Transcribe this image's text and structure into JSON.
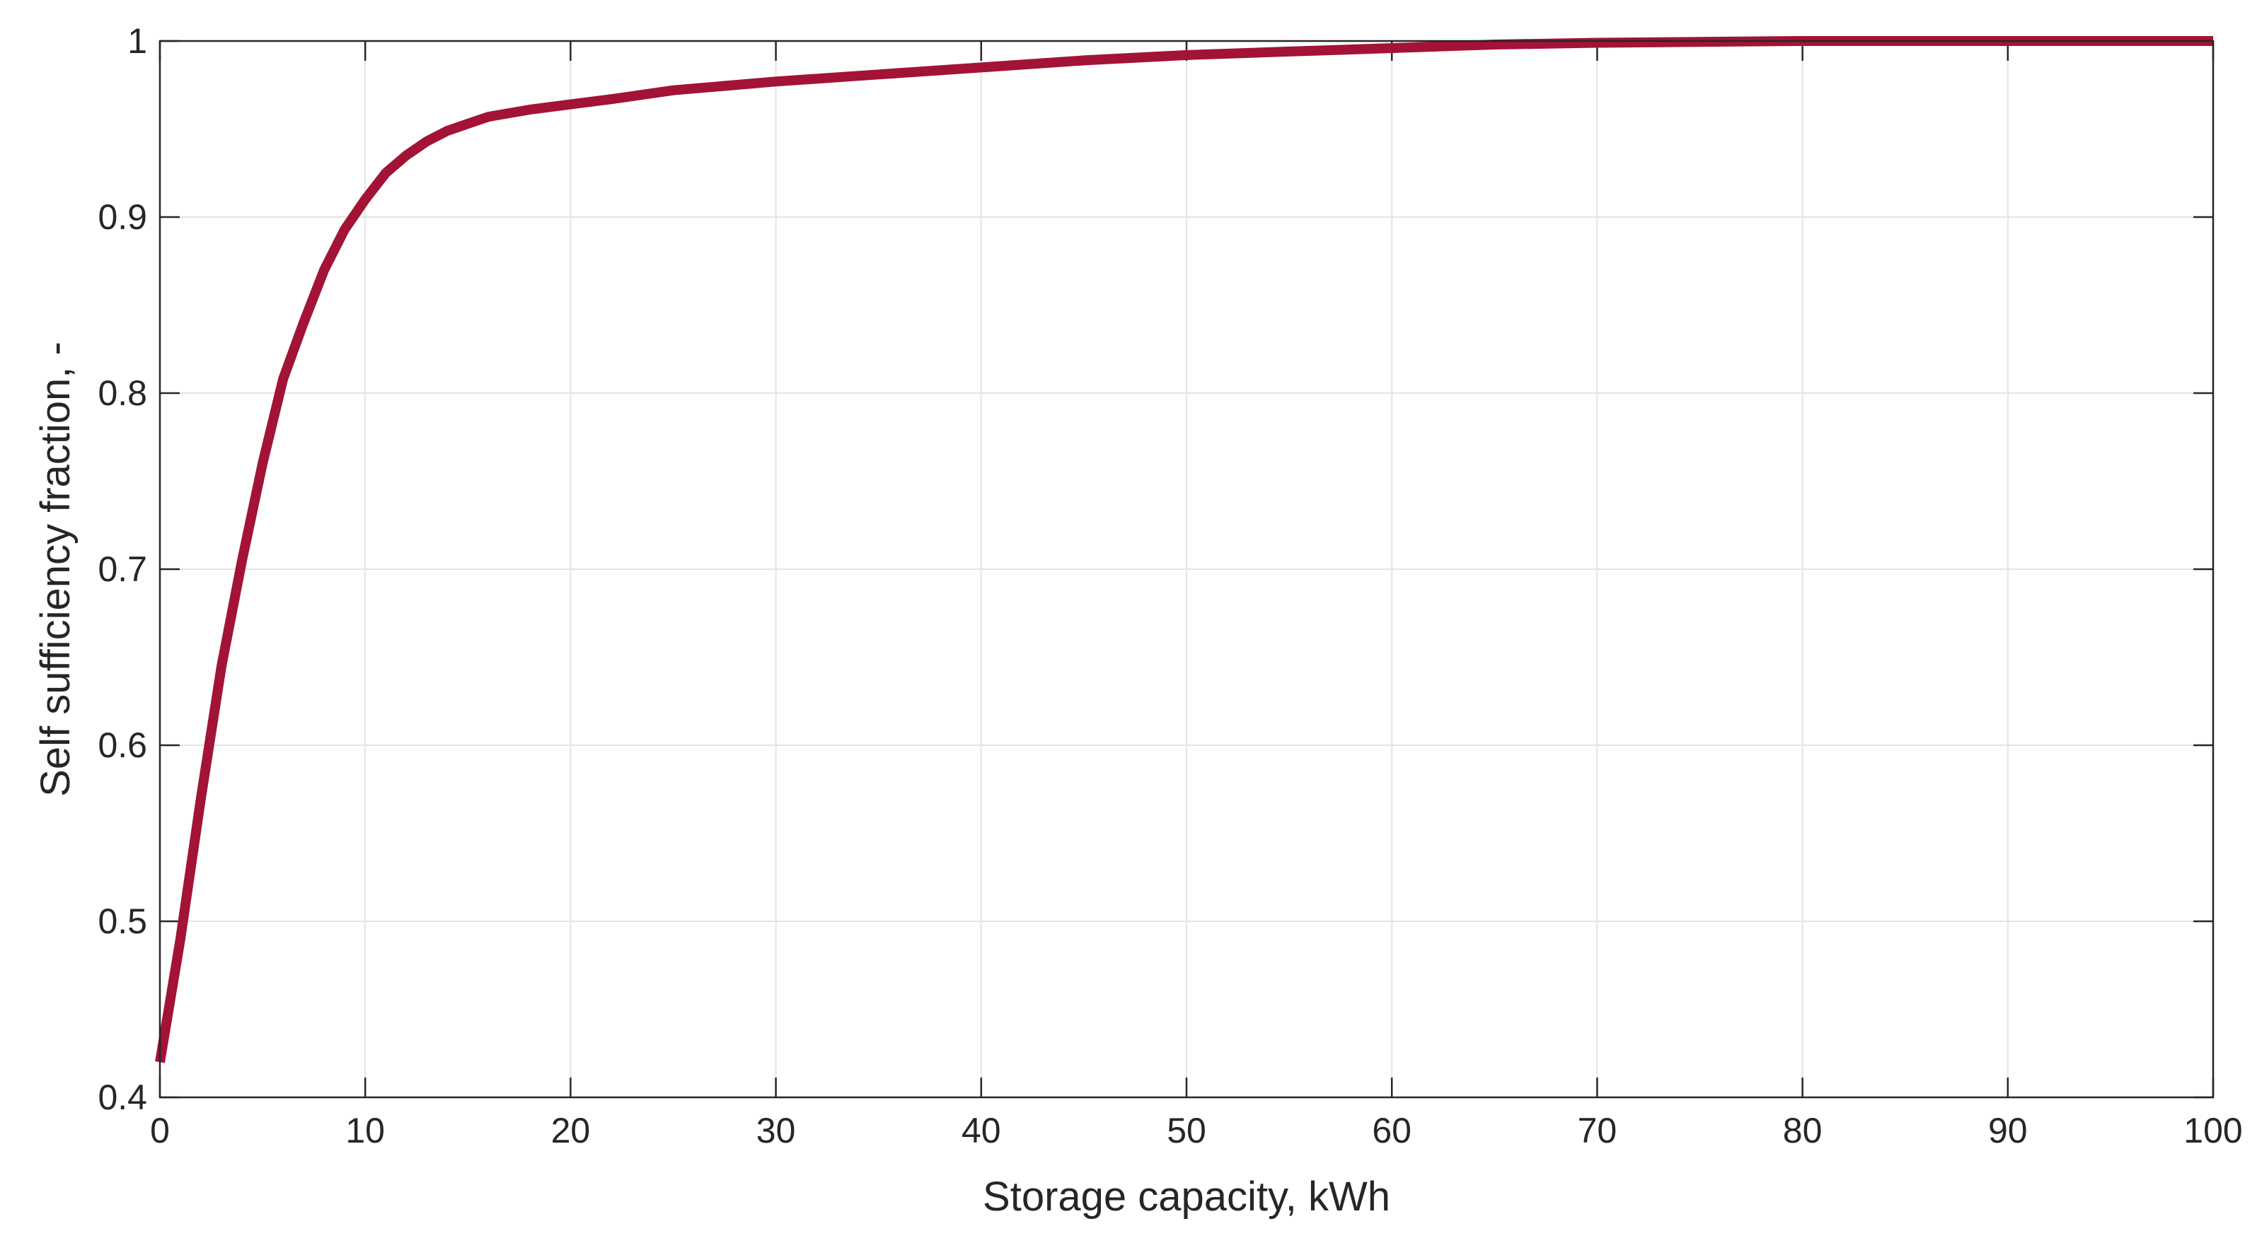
{
  "chart_data": {
    "type": "line",
    "title": "",
    "xlabel": "Storage capacity, kWh",
    "ylabel": "Self sufficiency fraction, -",
    "xlim": [
      0,
      100
    ],
    "ylim": [
      0.4,
      1.0
    ],
    "xticks": [
      0,
      10,
      20,
      30,
      40,
      50,
      60,
      70,
      80,
      90,
      100
    ],
    "yticks": [
      0.4,
      0.5,
      0.6,
      0.7,
      0.8,
      0.9,
      1.0
    ],
    "xtick_labels": [
      "0",
      "10",
      "20",
      "30",
      "40",
      "50",
      "60",
      "70",
      "80",
      "90",
      "100"
    ],
    "ytick_labels": [
      "0.4",
      "0.5",
      "0.6",
      "0.7",
      "0.8",
      "0.9",
      "1"
    ],
    "grid": true,
    "legend": false,
    "line_color": "#A31336",
    "series": [
      {
        "x": [
          0,
          1,
          2,
          3,
          4,
          5,
          6,
          7,
          8,
          9,
          10,
          11,
          12,
          13,
          14,
          15,
          16,
          18,
          20,
          22,
          25,
          30,
          35,
          40,
          45,
          50,
          55,
          60,
          65,
          70,
          75,
          80,
          85,
          90,
          95,
          100
        ],
        "y": [
          0.42,
          0.49,
          0.57,
          0.645,
          0.705,
          0.76,
          0.808,
          0.84,
          0.87,
          0.893,
          0.91,
          0.925,
          0.935,
          0.943,
          0.949,
          0.953,
          0.957,
          0.961,
          0.964,
          0.967,
          0.972,
          0.977,
          0.981,
          0.985,
          0.989,
          0.992,
          0.994,
          0.996,
          0.998,
          0.999,
          0.9995,
          1.0,
          1.0,
          1.0,
          1.0,
          1.0
        ]
      }
    ]
  }
}
